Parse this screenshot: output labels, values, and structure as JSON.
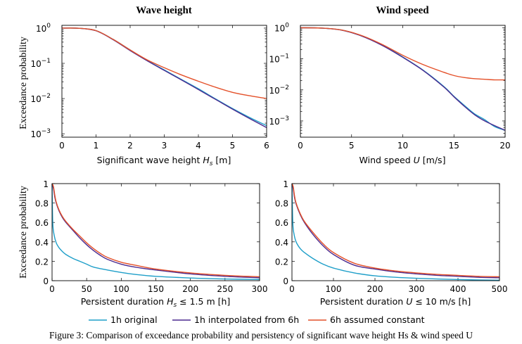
{
  "legend": {
    "entries": [
      {
        "name": "1h original",
        "color": "#1f9fc9"
      },
      {
        "name": "1h interpolated from 6h",
        "color": "#4b2a8f"
      },
      {
        "name": "6h assumed constant",
        "color": "#e4512a"
      }
    ]
  },
  "caption": "Figure 3: Comparison of exceedance probability and persistency of significant wave height Hs & wind speed U",
  "chart_data": [
    {
      "type": "line",
      "title": "Wave height",
      "ylabel": "Exceedance probability",
      "xlabel_parts": [
        "Significant wave height ",
        "H",
        "s",
        " [m]"
      ],
      "xlim": [
        0,
        6
      ],
      "ylim": [
        0.0008,
        1.2
      ],
      "yscale": "log",
      "xticks": [
        0,
        1,
        2,
        3,
        4,
        5,
        6
      ],
      "yticks": [
        {
          "value": 1,
          "base": "10",
          "exp": "0"
        },
        {
          "value": 0.1,
          "base": "10",
          "exp": "−1"
        },
        {
          "value": 0.01,
          "base": "10",
          "exp": "−2"
        },
        {
          "value": 0.001,
          "base": "10",
          "exp": "−3"
        }
      ],
      "series": [
        {
          "x": [
            0,
            0.5,
            1,
            1.5,
            2,
            2.5,
            3,
            3.5,
            4,
            4.5,
            5,
            5.5,
            6
          ],
          "y": [
            1,
            0.99,
            0.85,
            0.48,
            0.24,
            0.12,
            0.065,
            0.035,
            0.019,
            0.0098,
            0.0052,
            0.0029,
            0.0017
          ]
        },
        {
          "x": [
            0,
            0.5,
            1,
            1.5,
            2,
            2.5,
            3,
            3.5,
            4,
            4.5,
            5,
            5.5,
            6
          ],
          "y": [
            1,
            0.99,
            0.84,
            0.47,
            0.23,
            0.118,
            0.063,
            0.034,
            0.018,
            0.0095,
            0.005,
            0.0027,
            0.0015
          ]
        },
        {
          "x": [
            0,
            0.5,
            1,
            1.5,
            2,
            2.5,
            3,
            3.5,
            4,
            4.5,
            5,
            5.5,
            6
          ],
          "y": [
            1,
            0.99,
            0.85,
            0.48,
            0.24,
            0.125,
            0.075,
            0.047,
            0.031,
            0.021,
            0.015,
            0.012,
            0.01
          ]
        }
      ]
    },
    {
      "type": "line",
      "title": "Wind speed",
      "ylabel": "",
      "xlabel_parts": [
        "Wind speed ",
        "U",
        "",
        " [m/s]"
      ],
      "xlim": [
        0,
        20
      ],
      "ylim": [
        0.0003,
        1.2
      ],
      "yscale": "log",
      "xticks": [
        0,
        5,
        10,
        15,
        20
      ],
      "yticks": [
        {
          "value": 1,
          "base": "10",
          "exp": "0"
        },
        {
          "value": 0.1,
          "base": "10",
          "exp": "−1"
        },
        {
          "value": 0.01,
          "base": "10",
          "exp": "−2"
        },
        {
          "value": 0.001,
          "base": "10",
          "exp": "−3"
        }
      ],
      "series": [
        {
          "x": [
            0,
            2,
            4,
            6,
            8,
            10,
            12,
            14,
            15,
            16,
            17,
            18,
            19,
            20
          ],
          "y": [
            1,
            0.98,
            0.85,
            0.55,
            0.28,
            0.115,
            0.043,
            0.013,
            0.0062,
            0.0032,
            0.0017,
            0.0011,
            0.00065,
            0.0005
          ]
        },
        {
          "x": [
            0,
            2,
            4,
            6,
            8,
            10,
            12,
            14,
            15,
            16,
            17,
            18,
            19,
            20
          ],
          "y": [
            1,
            0.98,
            0.84,
            0.54,
            0.27,
            0.112,
            0.042,
            0.0125,
            0.006,
            0.003,
            0.0016,
            0.001,
            0.0007,
            0.0005
          ]
        },
        {
          "x": [
            0,
            2,
            4,
            6,
            8,
            10,
            12,
            14,
            15,
            16,
            17,
            18,
            19,
            20
          ],
          "y": [
            1,
            0.98,
            0.85,
            0.56,
            0.29,
            0.13,
            0.065,
            0.037,
            0.029,
            0.025,
            0.023,
            0.022,
            0.021,
            0.021
          ]
        }
      ]
    },
    {
      "type": "line",
      "title": "",
      "ylabel": "Exceedance probability",
      "xlabel_parts": [
        "Persistent duration ",
        "H",
        "s",
        " ≤ 1.5 m [h]"
      ],
      "xlim": [
        0,
        300
      ],
      "ylim": [
        0,
        1
      ],
      "yscale": "linear",
      "xticks": [
        0,
        50,
        100,
        150,
        200,
        250,
        300
      ],
      "yticks": [
        {
          "value": 0,
          "label": "0"
        },
        {
          "value": 0.2,
          "label": "0.2"
        },
        {
          "value": 0.4,
          "label": "0.4"
        },
        {
          "value": 0.6,
          "label": "0.6"
        },
        {
          "value": 0.8,
          "label": "0.8"
        },
        {
          "value": 1,
          "label": "1"
        }
      ],
      "series": [
        {
          "x": [
            0,
            1,
            3,
            6,
            10,
            15,
            20,
            30,
            40,
            50,
            60,
            80,
            100,
            120,
            150,
            200,
            250,
            300
          ],
          "y": [
            1,
            0.6,
            0.47,
            0.39,
            0.34,
            0.3,
            0.27,
            0.23,
            0.2,
            0.17,
            0.14,
            0.11,
            0.085,
            0.065,
            0.045,
            0.028,
            0.018,
            0.012
          ]
        },
        {
          "x": [
            0,
            2,
            4,
            6,
            10,
            15,
            20,
            30,
            40,
            50,
            60,
            70,
            80,
            100,
            120,
            150,
            200,
            250,
            300
          ],
          "y": [
            1,
            0.95,
            0.86,
            0.8,
            0.72,
            0.65,
            0.6,
            0.52,
            0.44,
            0.37,
            0.31,
            0.26,
            0.22,
            0.17,
            0.14,
            0.11,
            0.07,
            0.045,
            0.03
          ]
        },
        {
          "x": [
            0,
            2,
            4,
            6,
            10,
            15,
            20,
            30,
            40,
            50,
            60,
            70,
            80,
            100,
            120,
            150,
            200,
            250,
            300
          ],
          "y": [
            1,
            0.97,
            0.88,
            0.81,
            0.73,
            0.66,
            0.61,
            0.53,
            0.46,
            0.39,
            0.33,
            0.28,
            0.24,
            0.19,
            0.16,
            0.12,
            0.08,
            0.055,
            0.04
          ]
        }
      ]
    },
    {
      "type": "line",
      "title": "",
      "ylabel": "",
      "xlabel_parts": [
        "Persistent duration ",
        "U",
        "",
        " ≤ 10 m/s [h]"
      ],
      "xlim": [
        0,
        500
      ],
      "ylim": [
        0,
        1
      ],
      "yscale": "linear",
      "xticks": [
        0,
        100,
        200,
        300,
        400,
        500
      ],
      "yticks": [
        {
          "value": 0,
          "label": "0"
        },
        {
          "value": 0.2,
          "label": "0.2"
        },
        {
          "value": 0.4,
          "label": "0.4"
        },
        {
          "value": 0.6,
          "label": "0.6"
        },
        {
          "value": 0.8,
          "label": "0.8"
        },
        {
          "value": 1,
          "label": "1"
        }
      ],
      "series": [
        {
          "x": [
            0,
            2,
            5,
            10,
            20,
            30,
            50,
            75,
            100,
            150,
            200,
            250,
            300,
            350,
            400,
            450,
            500
          ],
          "y": [
            1,
            0.6,
            0.48,
            0.4,
            0.33,
            0.29,
            0.23,
            0.17,
            0.13,
            0.08,
            0.05,
            0.035,
            0.025,
            0.018,
            0.012,
            0.008,
            0.005
          ]
        },
        {
          "x": [
            0,
            3,
            6,
            10,
            20,
            30,
            50,
            75,
            100,
            150,
            200,
            250,
            300,
            350,
            400,
            450,
            500
          ],
          "y": [
            1,
            0.95,
            0.86,
            0.79,
            0.68,
            0.6,
            0.48,
            0.36,
            0.27,
            0.16,
            0.12,
            0.09,
            0.07,
            0.055,
            0.045,
            0.035,
            0.03
          ]
        },
        {
          "x": [
            0,
            3,
            6,
            10,
            20,
            30,
            50,
            75,
            100,
            150,
            200,
            250,
            300,
            350,
            400,
            450,
            500
          ],
          "y": [
            1,
            0.97,
            0.88,
            0.8,
            0.69,
            0.61,
            0.5,
            0.38,
            0.29,
            0.18,
            0.13,
            0.1,
            0.08,
            0.065,
            0.055,
            0.045,
            0.04
          ]
        }
      ]
    }
  ]
}
